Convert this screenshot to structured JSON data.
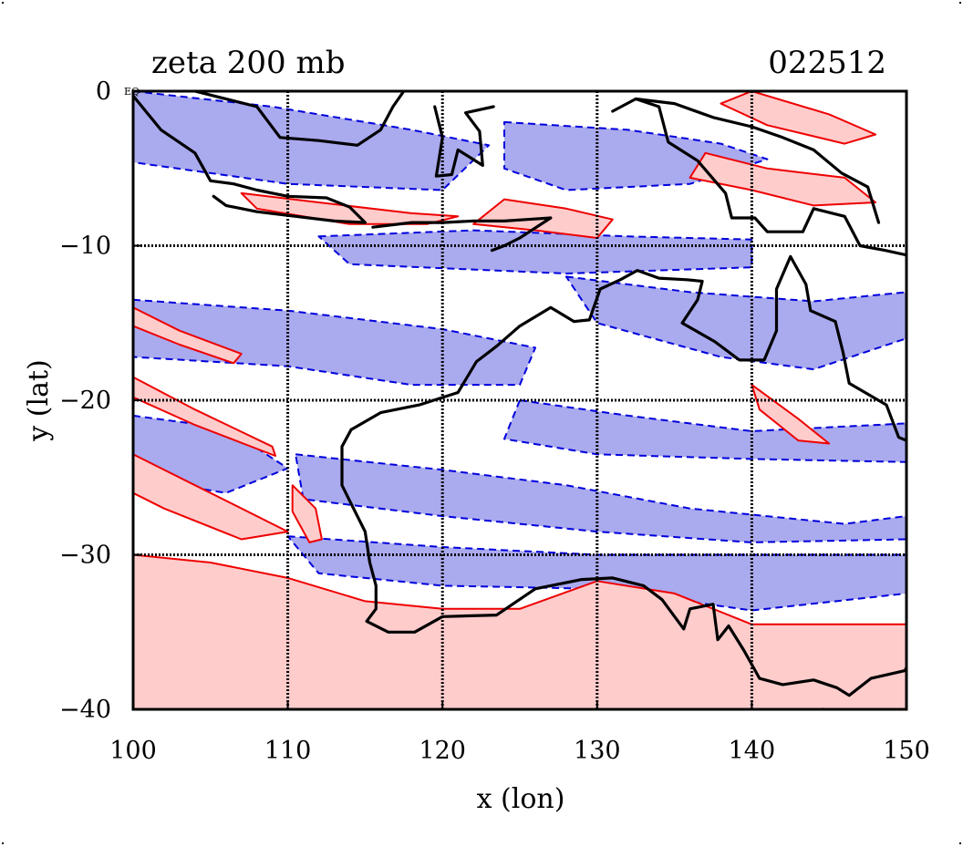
{
  "title_left": "zeta 200 mb",
  "title_right": "022512",
  "corner_label": "EQ",
  "xlabel": "x (lon)",
  "ylabel": "y (lat)",
  "colors": {
    "positive_line": "#ee0000",
    "positive_fill": "#ffcccc",
    "negative_line": "#0000dd",
    "negative_fill": "#aaaaee",
    "coast": "#000000",
    "grid": "#000000"
  },
  "chart_data": {
    "type": "contour-map",
    "variable": "relative vorticity (zeta)",
    "level": "200 mb",
    "xlim": [
      100,
      150
    ],
    "ylim": [
      -40,
      0
    ],
    "xticks": [
      100,
      110,
      120,
      130,
      140,
      150
    ],
    "yticks": [
      0,
      -10,
      -20,
      -30,
      -40
    ],
    "ytick_labels": [
      "0",
      "−10",
      "−20",
      "−30",
      "−40"
    ],
    "grid_lon": [
      110,
      120,
      130,
      140
    ],
    "grid_lat": [
      -10,
      -20,
      -30
    ],
    "grid": true,
    "positive_regions": [
      {
        "name": "southern-jet-band",
        "points": [
          [
            100,
            -30
          ],
          [
            105,
            -30.5
          ],
          [
            110,
            -31.5
          ],
          [
            115,
            -33
          ],
          [
            120,
            -33.5
          ],
          [
            125,
            -33.5
          ],
          [
            130,
            -31.7
          ],
          [
            135,
            -32.5
          ],
          [
            140,
            -34.5
          ],
          [
            145,
            -34.5
          ],
          [
            150,
            -34.5
          ],
          [
            150,
            -40
          ],
          [
            100,
            -40
          ]
        ]
      },
      {
        "name": "timor-sea-streak",
        "points": [
          [
            124,
            -7
          ],
          [
            128,
            -7.6
          ],
          [
            131,
            -8.3
          ],
          [
            130,
            -9.5
          ],
          [
            126,
            -9
          ],
          [
            122,
            -8.6
          ]
        ]
      },
      {
        "name": "java-streak",
        "points": [
          [
            107,
            -6.6
          ],
          [
            112,
            -7.2
          ],
          [
            118,
            -7.9
          ],
          [
            121,
            -8.1
          ],
          [
            119,
            -8.6
          ],
          [
            114,
            -8.6
          ],
          [
            108,
            -7.6
          ]
        ]
      },
      {
        "name": "new-guinea-streak",
        "points": [
          [
            137,
            -4
          ],
          [
            141,
            -5
          ],
          [
            146,
            -5.6
          ],
          [
            148,
            -7.2
          ],
          [
            144,
            -7.4
          ],
          [
            140,
            -6.4
          ],
          [
            136,
            -5.6
          ]
        ]
      },
      {
        "name": "coral-sea-streak",
        "points": [
          [
            140,
            -19
          ],
          [
            143,
            -21.2
          ],
          [
            145,
            -22.8
          ],
          [
            143,
            -22.6
          ],
          [
            140.5,
            -20.6
          ]
        ]
      },
      {
        "name": "west-streak-upper",
        "points": [
          [
            100,
            -14
          ],
          [
            103,
            -15.5
          ],
          [
            107,
            -17
          ],
          [
            106.5,
            -17.6
          ],
          [
            103,
            -16.4
          ],
          [
            100,
            -15.2
          ]
        ]
      },
      {
        "name": "west-streak-lower",
        "points": [
          [
            100,
            -18.5
          ],
          [
            104,
            -20.6
          ],
          [
            109,
            -23
          ],
          [
            109.2,
            -23.6
          ],
          [
            104,
            -21.6
          ],
          [
            100,
            -19.8
          ]
        ]
      },
      {
        "name": "west-streak-south",
        "points": [
          [
            100,
            -23.5
          ],
          [
            104,
            -25.5
          ],
          [
            110,
            -28.5
          ],
          [
            107,
            -29
          ],
          [
            102,
            -27
          ],
          [
            100,
            -26
          ]
        ]
      },
      {
        "name": "small-cell-108-26",
        "points": [
          [
            110.3,
            -25.5
          ],
          [
            111.8,
            -27
          ],
          [
            112.2,
            -29
          ],
          [
            111.4,
            -29.2
          ],
          [
            110.3,
            -27.2
          ]
        ]
      },
      {
        "name": "banda-streak",
        "points": [
          [
            140,
            0
          ],
          [
            145,
            -1.5
          ],
          [
            148,
            -2.8
          ],
          [
            146,
            -3.4
          ],
          [
            141,
            -2.2
          ],
          [
            138,
            -0.8
          ]
        ]
      }
    ],
    "negative_regions": [
      {
        "name": "band-30-33S",
        "points": [
          [
            110,
            -28.8
          ],
          [
            120,
            -29.5
          ],
          [
            130,
            -30
          ],
          [
            140,
            -30
          ],
          [
            150,
            -30
          ],
          [
            150,
            -32.5
          ],
          [
            140,
            -33.6
          ],
          [
            130,
            -32.2
          ],
          [
            120,
            -32
          ],
          [
            112,
            -31.2
          ]
        ]
      },
      {
        "name": "band-24-28S",
        "points": [
          [
            110.5,
            -23.5
          ],
          [
            120,
            -24.5
          ],
          [
            128,
            -25.5
          ],
          [
            136,
            -27
          ],
          [
            146,
            -28
          ],
          [
            150,
            -27.5
          ],
          [
            150,
            -29
          ],
          [
            140,
            -29.2
          ],
          [
            130,
            -28.5
          ],
          [
            120,
            -27.5
          ],
          [
            111,
            -26.4
          ]
        ]
      },
      {
        "name": "band-20-23S",
        "points": [
          [
            125,
            -20
          ],
          [
            132,
            -21
          ],
          [
            140,
            -22
          ],
          [
            150,
            -21.5
          ],
          [
            150,
            -24
          ],
          [
            140,
            -23.8
          ],
          [
            130,
            -23.5
          ],
          [
            124,
            -22.5
          ]
        ]
      },
      {
        "name": "band-13-19S-west",
        "points": [
          [
            100,
            -13.5
          ],
          [
            110,
            -14.2
          ],
          [
            120,
            -15.4
          ],
          [
            126,
            -16.6
          ],
          [
            125,
            -19
          ],
          [
            118,
            -19
          ],
          [
            110,
            -17.8
          ],
          [
            100,
            -17.2
          ]
        ]
      },
      {
        "name": "band-arafura",
        "points": [
          [
            128,
            -12
          ],
          [
            136,
            -13
          ],
          [
            144,
            -13.6
          ],
          [
            150,
            -13
          ],
          [
            150,
            -16
          ],
          [
            144,
            -18
          ],
          [
            138,
            -17.2
          ],
          [
            130,
            -15
          ]
        ]
      },
      {
        "name": "band-equator-west",
        "points": [
          [
            100,
            0
          ],
          [
            109,
            -1
          ],
          [
            118,
            -2.5
          ],
          [
            123,
            -3.5
          ],
          [
            120,
            -6.4
          ],
          [
            110,
            -6
          ],
          [
            100,
            -4.6
          ]
        ]
      },
      {
        "name": "band-equator-east",
        "points": [
          [
            124,
            -2
          ],
          [
            132,
            -2.5
          ],
          [
            138,
            -3.4
          ],
          [
            141,
            -4.4
          ],
          [
            136,
            -6
          ],
          [
            128,
            -6.4
          ],
          [
            124,
            -5
          ]
        ]
      },
      {
        "name": "band-west-25S",
        "points": [
          [
            100,
            -21
          ],
          [
            106,
            -21.8
          ],
          [
            110,
            -24.4
          ],
          [
            106,
            -26
          ],
          [
            100,
            -25
          ]
        ]
      },
      {
        "name": "band-south-coast",
        "points": [
          [
            142,
            -36.5
          ],
          [
            150,
            -36.2
          ],
          [
            150,
            -40
          ],
          [
            140,
            -40
          ],
          [
            140,
            -38.2
          ]
        ]
      },
      {
        "name": "band-10S",
        "points": [
          [
            112,
            -9.4
          ],
          [
            122,
            -9
          ],
          [
            132,
            -9.4
          ],
          [
            140,
            -9.6
          ],
          [
            140,
            -11.4
          ],
          [
            128,
            -11.8
          ],
          [
            114,
            -11.2
          ]
        ]
      }
    ],
    "coastlines": [
      {
        "name": "australia",
        "points": [
          [
            114.1,
            -21.9
          ],
          [
            116,
            -20.8
          ],
          [
            118.5,
            -20.3
          ],
          [
            121,
            -19.5
          ],
          [
            122.2,
            -17.5
          ],
          [
            123.5,
            -16.5
          ],
          [
            125,
            -15.2
          ],
          [
            127,
            -14
          ],
          [
            128.5,
            -14.9
          ],
          [
            129.5,
            -14.8
          ],
          [
            130.2,
            -12.8
          ],
          [
            131.5,
            -12.2
          ],
          [
            132.6,
            -11.6
          ],
          [
            134,
            -12.1
          ],
          [
            135.8,
            -12.2
          ],
          [
            136.8,
            -12.3
          ],
          [
            136.5,
            -13.5
          ],
          [
            135.5,
            -15
          ],
          [
            137.6,
            -16.2
          ],
          [
            139.2,
            -17.4
          ],
          [
            140.8,
            -17.4
          ],
          [
            141.6,
            -15.5
          ],
          [
            141.6,
            -12.8
          ],
          [
            142.5,
            -10.7
          ],
          [
            143.5,
            -12.5
          ],
          [
            143.8,
            -14.2
          ],
          [
            145.4,
            -14.9
          ],
          [
            145.9,
            -16.9
          ],
          [
            146.3,
            -18.9
          ],
          [
            148.7,
            -20.3
          ],
          [
            149.5,
            -22.4
          ],
          [
            150,
            -22.6
          ]
        ]
      },
      {
        "name": "australia-west-coast",
        "points": [
          [
            114.1,
            -21.9
          ],
          [
            113.5,
            -23
          ],
          [
            113.5,
            -25.5
          ],
          [
            114,
            -26.5
          ],
          [
            115,
            -28.5
          ],
          [
            115.3,
            -30.5
          ],
          [
            115.7,
            -32
          ],
          [
            115.7,
            -33.5
          ],
          [
            115.1,
            -34.3
          ],
          [
            116.5,
            -35
          ],
          [
            118.2,
            -35
          ],
          [
            120,
            -34
          ],
          [
            123.5,
            -33.9
          ],
          [
            126,
            -32.2
          ],
          [
            129,
            -31.6
          ],
          [
            131,
            -31.5
          ],
          [
            133,
            -32
          ],
          [
            134.2,
            -32.9
          ],
          [
            135.6,
            -34.8
          ],
          [
            136,
            -33.5
          ],
          [
            137.5,
            -33.2
          ],
          [
            137.8,
            -35.5
          ],
          [
            138.5,
            -34.6
          ],
          [
            139.5,
            -36.2
          ],
          [
            140.5,
            -38
          ],
          [
            142,
            -38.4
          ],
          [
            144,
            -38.1
          ],
          [
            145.5,
            -38.6
          ],
          [
            146.3,
            -39.1
          ],
          [
            147.7,
            -38
          ],
          [
            149.9,
            -37.5
          ],
          [
            150,
            -37.3
          ]
        ]
      },
      {
        "name": "sumatra-java",
        "points": [
          [
            100,
            -0.3
          ],
          [
            101.8,
            -2.5
          ],
          [
            104,
            -4
          ],
          [
            105,
            -5.8
          ],
          [
            106.5,
            -6
          ],
          [
            108,
            -6.4
          ],
          [
            110,
            -6.8
          ],
          [
            112.5,
            -6.9
          ],
          [
            114,
            -7.5
          ],
          [
            115,
            -8.5
          ],
          [
            113,
            -8.4
          ],
          [
            110.5,
            -8.1
          ],
          [
            108,
            -7.8
          ],
          [
            106,
            -7.4
          ],
          [
            105.2,
            -6.8
          ]
        ]
      },
      {
        "name": "lesser-sunda",
        "points": [
          [
            115.5,
            -8.8
          ],
          [
            118,
            -8.5
          ],
          [
            120,
            -8.5
          ],
          [
            122,
            -8.4
          ],
          [
            124,
            -8.4
          ],
          [
            125.5,
            -8.3
          ],
          [
            127,
            -8.2
          ],
          [
            125,
            -9.5
          ],
          [
            124,
            -10
          ],
          [
            123.2,
            -10.3
          ]
        ]
      },
      {
        "name": "borneo-sulawesi",
        "points": [
          [
            104,
            0
          ],
          [
            108,
            -1
          ],
          [
            109.5,
            -3
          ],
          [
            112,
            -3.2
          ],
          [
            114.5,
            -3.5
          ],
          [
            116,
            -2.5
          ],
          [
            116.8,
            -1
          ],
          [
            117.5,
            0
          ]
        ]
      },
      {
        "name": "sulawesi",
        "points": [
          [
            119.5,
            -1
          ],
          [
            120,
            -3
          ],
          [
            119.6,
            -5.5
          ],
          [
            120.6,
            -5.4
          ],
          [
            121,
            -3.8
          ],
          [
            122.6,
            -4.8
          ],
          [
            122.4,
            -2.6
          ],
          [
            121.5,
            -1.4
          ],
          [
            123.3,
            -1
          ]
        ]
      },
      {
        "name": "new-guinea",
        "points": [
          [
            131,
            -1.3
          ],
          [
            132.5,
            -0.5
          ],
          [
            134,
            -1
          ],
          [
            134.6,
            -3.3
          ],
          [
            136.5,
            -4.5
          ],
          [
            138.3,
            -6.6
          ],
          [
            138.7,
            -8.2
          ],
          [
            140.2,
            -8.2
          ],
          [
            141,
            -9.1
          ],
          [
            143.3,
            -9.1
          ],
          [
            144,
            -7.6
          ],
          [
            146,
            -8.1
          ],
          [
            147,
            -10
          ],
          [
            148.6,
            -10.3
          ],
          [
            150,
            -10.6
          ]
        ]
      },
      {
        "name": "new-guinea-north",
        "points": [
          [
            132.5,
            -0.5
          ],
          [
            135,
            -0.8
          ],
          [
            137.5,
            -1.7
          ],
          [
            140,
            -2.3
          ],
          [
            142,
            -3
          ],
          [
            144,
            -3.8
          ],
          [
            145.8,
            -5.3
          ],
          [
            147.5,
            -6.2
          ],
          [
            148.2,
            -8.5
          ]
        ]
      },
      {
        "name": "tasmania",
        "points": [
          [
            144.6,
            -40
          ],
          [
            145.2,
            -40.8
          ],
          [
            146.5,
            -41.1
          ],
          [
            148,
            -40.8
          ]
        ]
      }
    ]
  }
}
